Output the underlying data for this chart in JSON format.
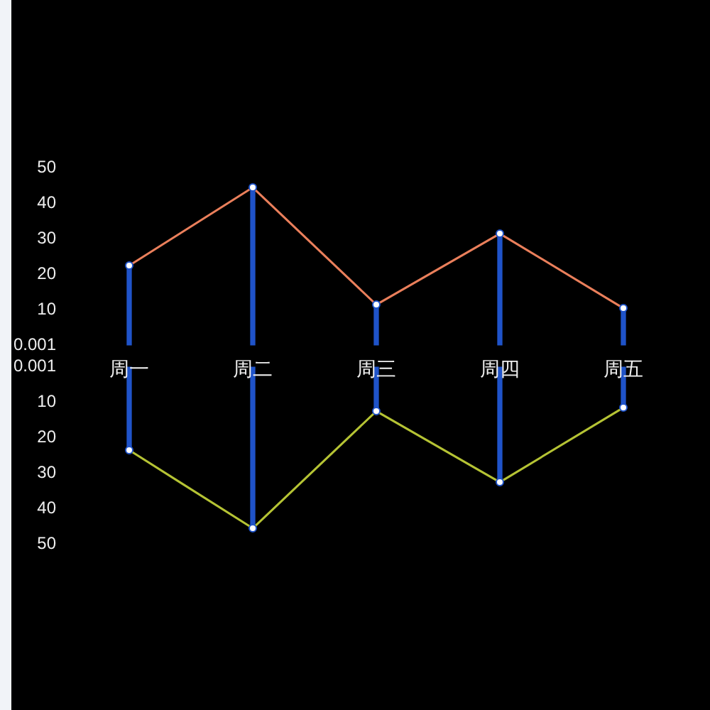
{
  "chart_data": [
    {
      "type": "bar",
      "categories": [
        "周一",
        "周二",
        "周三",
        "周四",
        "周五"
      ],
      "series": [
        {
          "color": "#1f53c9",
          "values": [
            22.5,
            44.5,
            11.5,
            31.5,
            10.5
          ]
        },
        {
          "type": "line",
          "color": "#ea7f5b",
          "values": [
            22.5,
            44.5,
            11.5,
            31.5,
            10.5
          ]
        }
      ],
      "marker": "circle",
      "ylim": [
        0.001,
        50
      ],
      "yticks": [
        0.001,
        10,
        20,
        30,
        40,
        50
      ]
    },
    {
      "type": "bar",
      "categories": [
        null,
        null,
        null,
        null,
        null
      ],
      "series": [
        {
          "color": "#1f53c9",
          "values": [
            23.5,
            45.5,
            12.5,
            32.5,
            11.5
          ]
        },
        {
          "type": "line",
          "color": "#b5c334",
          "values": [
            23.5,
            45.5,
            12.5,
            32.5,
            11.5
          ]
        }
      ],
      "marker": "circle",
      "ylim": [
        50,
        0.001
      ],
      "yticks": [
        0.001,
        10,
        20,
        30,
        40,
        50
      ]
    }
  ]
}
